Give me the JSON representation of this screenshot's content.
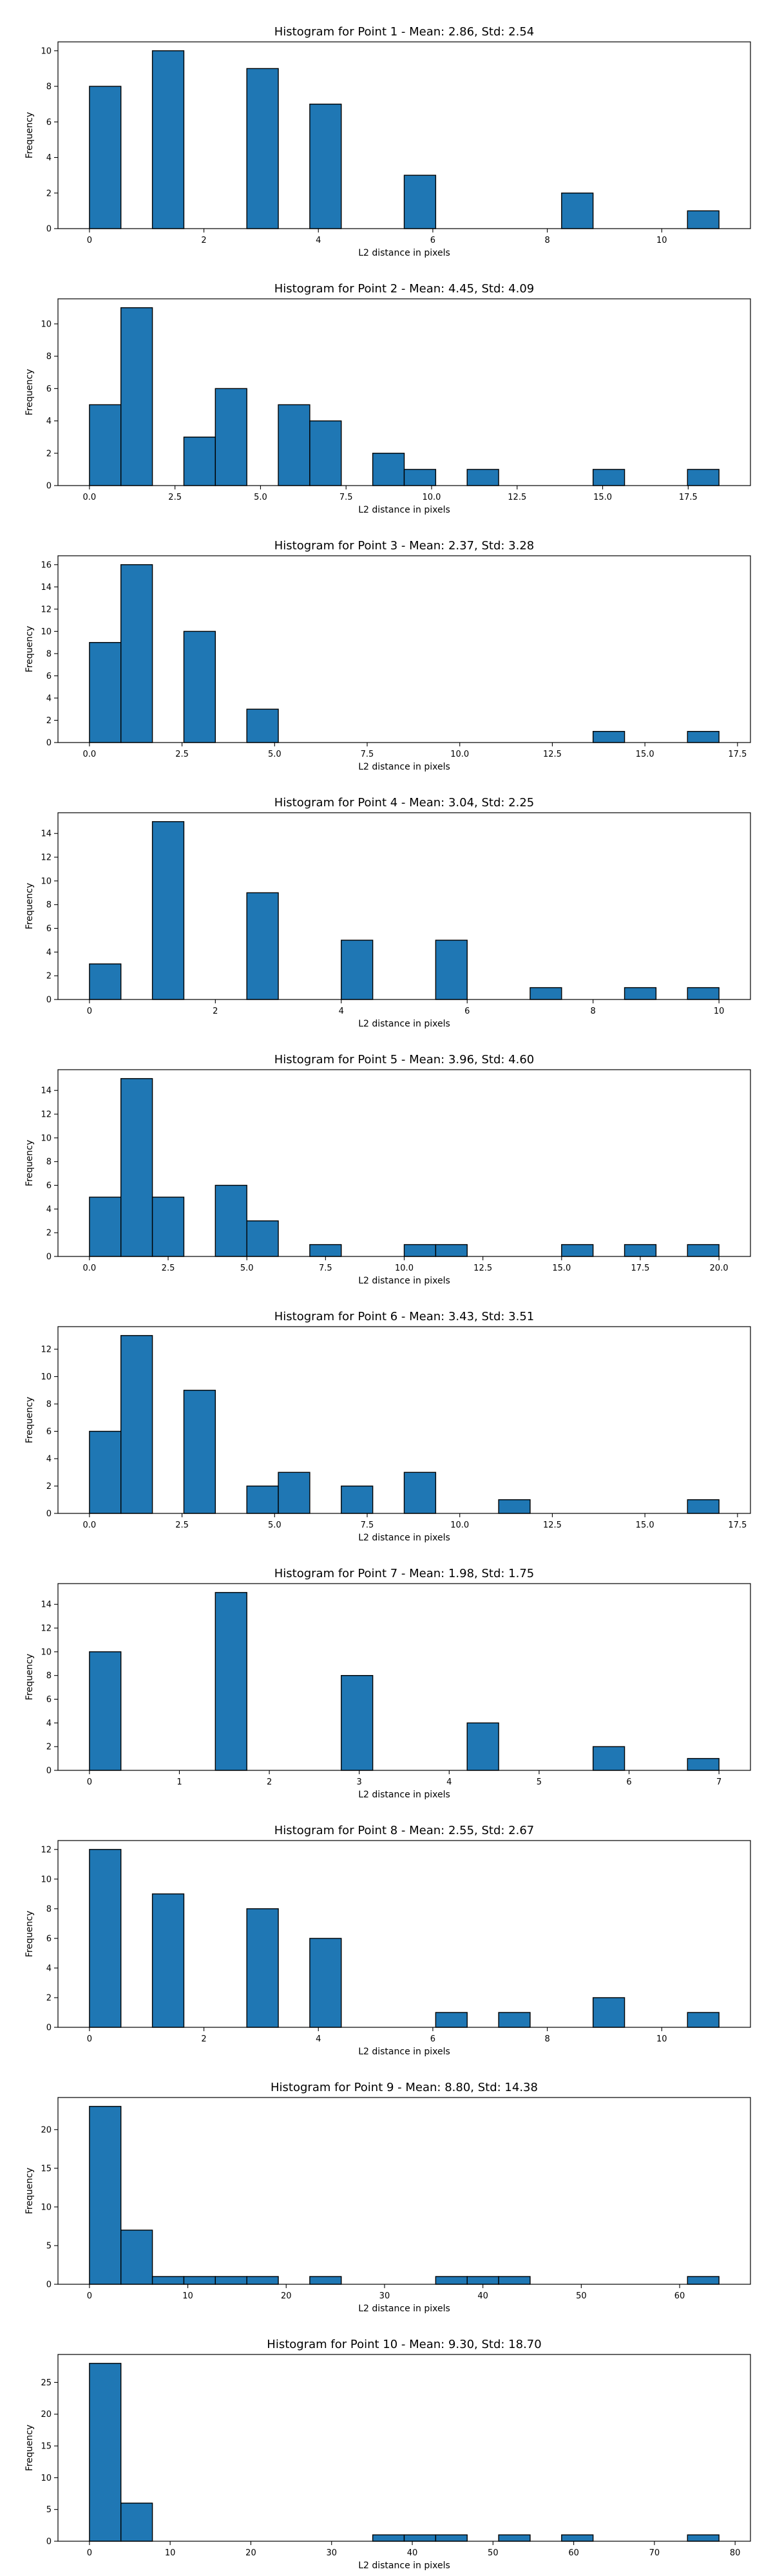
{
  "chart_data": [
    {
      "type": "bar",
      "title": "Histogram for Point 1 - Mean: 2.86, Std: 2.54",
      "xlabel": "L2 distance in pixels",
      "ylabel": "Frequency",
      "xlim": [
        -0.55,
        11.55
      ],
      "ylim": [
        0,
        10.5
      ],
      "xticks": [
        0,
        2,
        4,
        6,
        8,
        10
      ],
      "xtick_labels": [
        "0",
        "2",
        "4",
        "6",
        "8",
        "10"
      ],
      "yticks": [
        0,
        2,
        4,
        6,
        8,
        10
      ],
      "ytick_labels": [
        "0",
        "2",
        "4",
        "6",
        "8",
        "10"
      ],
      "bin_edges": [
        0.0,
        0.55,
        1.1,
        1.65,
        2.2,
        2.75,
        3.3,
        3.85,
        4.4,
        4.95,
        5.5,
        6.05,
        6.6,
        7.15,
        7.7,
        8.25,
        8.8,
        9.35,
        9.9,
        10.45,
        11.0
      ],
      "counts": [
        8,
        0,
        10,
        0,
        0,
        9,
        0,
        7,
        0,
        0,
        3,
        0,
        0,
        0,
        0,
        2,
        0,
        0,
        0,
        1
      ]
    },
    {
      "type": "bar",
      "title": "Histogram for Point 2 - Mean: 4.45, Std: 4.09",
      "xlabel": "L2 distance in pixels",
      "ylabel": "Frequency",
      "xlim": [
        -0.92,
        19.32
      ],
      "ylim": [
        0,
        11.55
      ],
      "xticks": [
        0,
        2.5,
        5,
        7.5,
        10,
        12.5,
        15,
        17.5
      ],
      "xtick_labels": [
        "0.0",
        "2.5",
        "5.0",
        "7.5",
        "10.0",
        "12.5",
        "15.0",
        "17.5"
      ],
      "yticks": [
        0,
        2,
        4,
        6,
        8,
        10
      ],
      "ytick_labels": [
        "0",
        "2",
        "4",
        "6",
        "8",
        "10"
      ],
      "bin_edges": [
        0.0,
        0.92,
        1.84,
        2.76,
        3.68,
        4.6,
        5.52,
        6.44,
        7.36,
        8.28,
        9.2,
        10.12,
        11.04,
        11.96,
        12.88,
        13.8,
        14.72,
        15.64,
        16.56,
        17.48,
        18.4
      ],
      "counts": [
        5,
        11,
        0,
        3,
        6,
        0,
        5,
        4,
        0,
        2,
        1,
        0,
        1,
        0,
        0,
        0,
        1,
        0,
        0,
        1
      ]
    },
    {
      "type": "bar",
      "title": "Histogram for Point 3 - Mean: 2.37, Std: 3.28",
      "xlabel": "L2 distance in pixels",
      "ylabel": "Frequency",
      "xlim": [
        -0.85,
        17.85
      ],
      "ylim": [
        0,
        16.8
      ],
      "xticks": [
        0,
        2.5,
        5,
        7.5,
        10,
        12.5,
        15,
        17.5
      ],
      "xtick_labels": [
        "0.0",
        "2.5",
        "5.0",
        "7.5",
        "10.0",
        "12.5",
        "15.0",
        "17.5"
      ],
      "yticks": [
        0,
        2,
        4,
        6,
        8,
        10,
        12,
        14,
        16
      ],
      "ytick_labels": [
        "0",
        "2",
        "4",
        "6",
        "8",
        "10",
        "12",
        "14",
        "16"
      ],
      "bin_edges": [
        0.0,
        0.85,
        1.7,
        2.55,
        3.4,
        4.25,
        5.1,
        5.95,
        6.8,
        7.65,
        8.5,
        9.35,
        10.2,
        11.05,
        11.9,
        12.75,
        13.6,
        14.45,
        15.3,
        16.15,
        17.0
      ],
      "counts": [
        9,
        16,
        0,
        10,
        0,
        3,
        0,
        0,
        0,
        0,
        0,
        0,
        0,
        0,
        0,
        0,
        1,
        0,
        0,
        1
      ]
    },
    {
      "type": "bar",
      "title": "Histogram for Point 4 - Mean: 3.04, Std: 2.25",
      "xlabel": "L2 distance in pixels",
      "ylabel": "Frequency",
      "xlim": [
        -0.5,
        10.5
      ],
      "ylim": [
        0,
        15.75
      ],
      "xticks": [
        0,
        2,
        4,
        6,
        8,
        10
      ],
      "xtick_labels": [
        "0",
        "2",
        "4",
        "6",
        "8",
        "10"
      ],
      "yticks": [
        0,
        2,
        4,
        6,
        8,
        10,
        12,
        14
      ],
      "ytick_labels": [
        "0",
        "2",
        "4",
        "6",
        "8",
        "10",
        "12",
        "14"
      ],
      "bin_edges": [
        0.0,
        0.5,
        1.0,
        1.5,
        2.0,
        2.5,
        3.0,
        3.5,
        4.0,
        4.5,
        5.0,
        5.5,
        6.0,
        6.5,
        7.0,
        7.5,
        8.0,
        8.5,
        9.0,
        9.5,
        10.0
      ],
      "counts": [
        3,
        0,
        15,
        0,
        0,
        9,
        0,
        0,
        5,
        0,
        0,
        5,
        0,
        0,
        1,
        0,
        0,
        1,
        0,
        1
      ]
    },
    {
      "type": "bar",
      "title": "Histogram for Point 5 - Mean: 3.96, Std: 4.60",
      "xlabel": "L2 distance in pixels",
      "ylabel": "Frequency",
      "xlim": [
        -1.0,
        21.0
      ],
      "ylim": [
        0,
        15.75
      ],
      "xticks": [
        0,
        2.5,
        5,
        7.5,
        10,
        12.5,
        15,
        17.5,
        20
      ],
      "xtick_labels": [
        "0.0",
        "2.5",
        "5.0",
        "7.5",
        "10.0",
        "12.5",
        "15.0",
        "17.5",
        "20.0"
      ],
      "yticks": [
        0,
        2,
        4,
        6,
        8,
        10,
        12,
        14
      ],
      "ytick_labels": [
        "0",
        "2",
        "4",
        "6",
        "8",
        "10",
        "12",
        "14"
      ],
      "bin_edges": [
        0.0,
        1.0,
        2.0,
        3.0,
        4.0,
        5.0,
        6.0,
        7.0,
        8.0,
        9.0,
        10.0,
        11.0,
        12.0,
        13.0,
        14.0,
        15.0,
        16.0,
        17.0,
        18.0,
        19.0,
        20.0
      ],
      "counts": [
        5,
        15,
        5,
        0,
        6,
        3,
        0,
        1,
        0,
        0,
        1,
        1,
        0,
        0,
        0,
        1,
        0,
        1,
        0,
        1
      ]
    },
    {
      "type": "bar",
      "title": "Histogram for Point 6 - Mean: 3.43, Std: 3.51",
      "xlabel": "L2 distance in pixels",
      "ylabel": "Frequency",
      "xlim": [
        -0.85,
        17.85
      ],
      "ylim": [
        0,
        13.65
      ],
      "xticks": [
        0,
        2.5,
        5,
        7.5,
        10,
        12.5,
        15,
        17.5
      ],
      "xtick_labels": [
        "0.0",
        "2.5",
        "5.0",
        "7.5",
        "10.0",
        "12.5",
        "15.0",
        "17.5"
      ],
      "yticks": [
        0,
        2,
        4,
        6,
        8,
        10,
        12
      ],
      "ytick_labels": [
        "0",
        "2",
        "4",
        "6",
        "8",
        "10",
        "12"
      ],
      "bin_edges": [
        0.0,
        0.85,
        1.7,
        2.55,
        3.4,
        4.25,
        5.1,
        5.95,
        6.8,
        7.65,
        8.5,
        9.35,
        10.2,
        11.05,
        11.9,
        12.75,
        13.6,
        14.45,
        15.3,
        16.15,
        17.0
      ],
      "counts": [
        6,
        13,
        0,
        9,
        0,
        2,
        3,
        0,
        2,
        0,
        3,
        0,
        0,
        1,
        0,
        0,
        0,
        0,
        0,
        1
      ]
    },
    {
      "type": "bar",
      "title": "Histogram for Point 7 - Mean: 1.98, Std: 1.75",
      "xlabel": "L2 distance in pixels",
      "ylabel": "Frequency",
      "xlim": [
        -0.35,
        7.35
      ],
      "ylim": [
        0,
        15.75
      ],
      "xticks": [
        0,
        1,
        2,
        3,
        4,
        5,
        6,
        7
      ],
      "xtick_labels": [
        "0",
        "1",
        "2",
        "3",
        "4",
        "5",
        "6",
        "7"
      ],
      "yticks": [
        0,
        2,
        4,
        6,
        8,
        10,
        12,
        14
      ],
      "ytick_labels": [
        "0",
        "2",
        "4",
        "6",
        "8",
        "10",
        "12",
        "14"
      ],
      "bin_edges": [
        0.0,
        0.35,
        0.7,
        1.05,
        1.4,
        1.75,
        2.1,
        2.45,
        2.8,
        3.15,
        3.5,
        3.85,
        4.2,
        4.55,
        4.9,
        5.25,
        5.6,
        5.95,
        6.3,
        6.65,
        7.0
      ],
      "counts": [
        10,
        0,
        0,
        0,
        15,
        0,
        0,
        0,
        8,
        0,
        0,
        0,
        4,
        0,
        0,
        0,
        2,
        0,
        0,
        1
      ]
    },
    {
      "type": "bar",
      "title": "Histogram for Point 8 - Mean: 2.55, Std: 2.67",
      "xlabel": "L2 distance in pixels",
      "ylabel": "Frequency",
      "xlim": [
        -0.55,
        11.55
      ],
      "ylim": [
        0,
        12.6
      ],
      "xticks": [
        0,
        2,
        4,
        6,
        8,
        10
      ],
      "xtick_labels": [
        "0",
        "2",
        "4",
        "6",
        "8",
        "10"
      ],
      "yticks": [
        0,
        2,
        4,
        6,
        8,
        10,
        12
      ],
      "ytick_labels": [
        "0",
        "2",
        "4",
        "6",
        "8",
        "10",
        "12"
      ],
      "bin_edges": [
        0.0,
        0.55,
        1.1,
        1.65,
        2.2,
        2.75,
        3.3,
        3.85,
        4.4,
        4.95,
        5.5,
        6.05,
        6.6,
        7.15,
        7.7,
        8.25,
        8.8,
        9.35,
        9.9,
        10.45,
        11.0
      ],
      "counts": [
        12,
        0,
        9,
        0,
        0,
        8,
        0,
        6,
        0,
        0,
        0,
        1,
        0,
        1,
        0,
        0,
        2,
        0,
        0,
        1
      ]
    },
    {
      "type": "bar",
      "title": "Histogram for Point 9 - Mean: 8.80, Std: 14.38",
      "xlabel": "L2 distance in pixels",
      "ylabel": "Frequency",
      "xlim": [
        -3.2,
        67.2
      ],
      "ylim": [
        0,
        24.15
      ],
      "xticks": [
        0,
        10,
        20,
        30,
        40,
        50,
        60
      ],
      "xtick_labels": [
        "0",
        "10",
        "20",
        "30",
        "40",
        "50",
        "60"
      ],
      "yticks": [
        0,
        5,
        10,
        15,
        20
      ],
      "ytick_labels": [
        "0",
        "5",
        "10",
        "15",
        "20"
      ],
      "bin_edges": [
        0.0,
        3.2,
        6.4,
        9.6,
        12.8,
        16.0,
        19.2,
        22.4,
        25.6,
        28.8,
        32.0,
        35.2,
        38.4,
        41.6,
        44.8,
        48.0,
        51.2,
        54.4,
        57.6,
        60.8,
        64.0
      ],
      "counts": [
        23,
        7,
        1,
        1,
        1,
        1,
        0,
        1,
        0,
        0,
        0,
        1,
        1,
        1,
        0,
        0,
        0,
        0,
        0,
        1
      ]
    },
    {
      "type": "bar",
      "title": "Histogram for Point 10 - Mean: 9.30, Std: 18.70",
      "xlabel": "L2 distance in pixels",
      "ylabel": "Frequency",
      "xlim": [
        -3.9,
        81.9
      ],
      "ylim": [
        0,
        29.4
      ],
      "xticks": [
        0,
        10,
        20,
        30,
        40,
        50,
        60,
        70,
        80
      ],
      "xtick_labels": [
        "0",
        "10",
        "20",
        "30",
        "40",
        "50",
        "60",
        "70",
        "80"
      ],
      "yticks": [
        0,
        5,
        10,
        15,
        20,
        25
      ],
      "ytick_labels": [
        "0",
        "5",
        "10",
        "15",
        "20",
        "25"
      ],
      "bin_edges": [
        0.0,
        3.9,
        7.8,
        11.7,
        15.6,
        19.5,
        23.4,
        27.3,
        31.2,
        35.1,
        39.0,
        42.9,
        46.8,
        50.7,
        54.6,
        58.5,
        62.4,
        66.3,
        70.2,
        74.1,
        78.0
      ],
      "counts": [
        28,
        6,
        0,
        0,
        0,
        0,
        0,
        0,
        0,
        1,
        1,
        1,
        0,
        1,
        0,
        1,
        0,
        0,
        0,
        1
      ]
    }
  ]
}
